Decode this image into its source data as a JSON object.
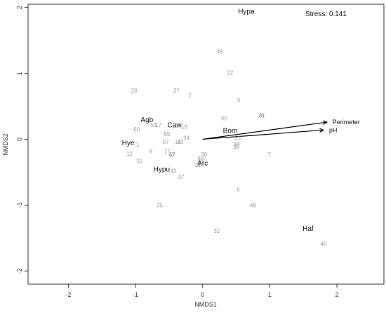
{
  "chart_data": {
    "type": "scatter",
    "xlabel": "NMDS1",
    "ylabel": "NMDS2",
    "xlim": [
      -2.6,
      2.7
    ],
    "ylim": [
      -2.2,
      2.05
    ],
    "xticks": [
      -2,
      -1,
      0,
      1,
      2
    ],
    "yticks": [
      -2,
      -1,
      0,
      1,
      2
    ],
    "stress_text": "Stress: 0.141",
    "sites": [
      {
        "label": "38",
        "x": 0.25,
        "y": 1.33
      },
      {
        "label": "22",
        "x": 0.41,
        "y": 1.01
      },
      {
        "label": "28",
        "x": -1.02,
        "y": 0.74
      },
      {
        "label": "27",
        "x": -0.39,
        "y": 0.74
      },
      {
        "label": "2",
        "x": -0.19,
        "y": 0.67
      },
      {
        "label": "5",
        "x": 0.54,
        "y": 0.6
      },
      {
        "label": "40",
        "x": 0.32,
        "y": 0.32
      },
      {
        "label": "20",
        "x": 0.87,
        "y": 0.36
      },
      {
        "label": "31",
        "x": 0.88,
        "y": 0.36
      },
      {
        "label": "51",
        "x": -0.73,
        "y": 0.22
      },
      {
        "label": "17",
        "x": -0.66,
        "y": 0.22
      },
      {
        "label": "50",
        "x": -0.98,
        "y": 0.15
      },
      {
        "label": "16",
        "x": -0.27,
        "y": 0.19
      },
      {
        "label": "55",
        "x": -0.53,
        "y": 0.08
      },
      {
        "label": "24",
        "x": -0.24,
        "y": 0.02
      },
      {
        "label": "57",
        "x": -0.55,
        "y": -0.04
      },
      {
        "label": "18",
        "x": -0.37,
        "y": -0.04
      },
      {
        "label": "13",
        "x": -0.33,
        "y": -0.04
      },
      {
        "label": "53",
        "x": 0.52,
        "y": 0.02
      },
      {
        "label": "34",
        "x": 0.51,
        "y": -0.07
      },
      {
        "label": "36",
        "x": 0.5,
        "y": -0.11
      },
      {
        "label": "1",
        "x": -0.97,
        "y": -0.08
      },
      {
        "label": "12",
        "x": -1.09,
        "y": -0.22
      },
      {
        "label": "8",
        "x": -0.77,
        "y": -0.18
      },
      {
        "label": "17",
        "x": -0.53,
        "y": -0.18
      },
      {
        "label": "42",
        "x": -0.46,
        "y": -0.23
      },
      {
        "label": "52",
        "x": -0.45,
        "y": -0.23
      },
      {
        "label": "30",
        "x": 0.02,
        "y": -0.23
      },
      {
        "label": "23",
        "x": -0.03,
        "y": -0.29
      },
      {
        "label": "25",
        "x": -0.03,
        "y": -0.32
      },
      {
        "label": "21",
        "x": -0.07,
        "y": -0.39
      },
      {
        "label": "7",
        "x": 0.99,
        "y": -0.23
      },
      {
        "label": "31",
        "x": -0.94,
        "y": -0.33
      },
      {
        "label": "33",
        "x": -0.44,
        "y": -0.48
      },
      {
        "label": "37",
        "x": -0.32,
        "y": -0.57
      },
      {
        "label": "6",
        "x": 0.53,
        "y": -0.76
      },
      {
        "label": "48",
        "x": 0.75,
        "y": -1.0
      },
      {
        "label": "35",
        "x": -0.64,
        "y": -1.0
      },
      {
        "label": "32",
        "x": 0.21,
        "y": -1.39
      },
      {
        "label": "46",
        "x": 1.8,
        "y": -1.59
      }
    ],
    "species": [
      {
        "label": "Hypa",
        "x": 0.65,
        "y": 1.94
      },
      {
        "label": "Agb",
        "x": -0.83,
        "y": 0.29
      },
      {
        "label": "Caw",
        "x": -0.42,
        "y": 0.21
      },
      {
        "label": "Bom",
        "x": 0.41,
        "y": 0.13
      },
      {
        "label": "Hye",
        "x": -1.11,
        "y": -0.06
      },
      {
        "label": "Arc",
        "x": 0.0,
        "y": -0.37
      },
      {
        "label": "Hypu",
        "x": -0.61,
        "y": -0.46
      },
      {
        "label": "Haf",
        "x": 1.57,
        "y": -1.36
      }
    ],
    "vectors": [
      {
        "label": "Perimeter",
        "x": 1.85,
        "y": 0.26
      },
      {
        "label": "pH",
        "x": 1.8,
        "y": 0.14
      }
    ],
    "grid": false,
    "colors": {
      "site": "#9a9a9a",
      "species": "#111111",
      "vector": "#000000",
      "axis": "#333333"
    }
  }
}
